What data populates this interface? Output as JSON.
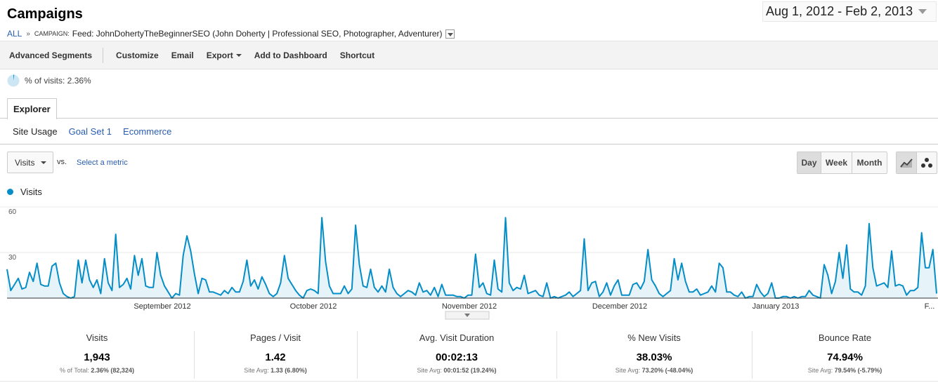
{
  "header": {
    "title": "Campaigns",
    "date_range": "Aug 1, 2012 - Feb 2, 2013"
  },
  "breadcrumb": {
    "all": "ALL",
    "sep": "»",
    "campaign_label": "CAMPAIGN:",
    "campaign_value": "Feed: JohnDohertyTheBeginnerSEO (John Doherty | Professional SEO, Photographer, Adventurer)"
  },
  "toolbar": {
    "advanced_segments": "Advanced Segments",
    "customize": "Customize",
    "email": "Email",
    "export": "Export",
    "add_to_dashboard": "Add to Dashboard",
    "shortcut": "Shortcut"
  },
  "segment": {
    "label": "% of visits: 2.36%",
    "fraction": 0.0236
  },
  "tabs": {
    "explorer": "Explorer",
    "subtabs": [
      "Site Usage",
      "Goal Set 1",
      "Ecommerce"
    ]
  },
  "controls": {
    "metric": "Visits",
    "vs": "vs.",
    "select_metric": "Select a metric",
    "periods": [
      "Day",
      "Week",
      "Month"
    ],
    "active_period": "Day"
  },
  "colors": {
    "line": "#058dc7",
    "fill": "#e6f3f9",
    "link": "#2a5db0"
  },
  "chart_data": {
    "type": "area",
    "series": [
      {
        "name": "Visits",
        "values": [
          19,
          5,
          9,
          13,
          6,
          7,
          17,
          11,
          23,
          9,
          8,
          8,
          21,
          23,
          10,
          3,
          1,
          0,
          1,
          25,
          10,
          25,
          12,
          7,
          12,
          3,
          26,
          10,
          5,
          42,
          7,
          9,
          13,
          6,
          28,
          15,
          26,
          8,
          7,
          7,
          30,
          15,
          8,
          4,
          0,
          3,
          2,
          28,
          41,
          31,
          16,
          3,
          13,
          12,
          4,
          4,
          3,
          2,
          5,
          3,
          7,
          4,
          4,
          11,
          25,
          8,
          12,
          6,
          14,
          9,
          3,
          1,
          3,
          10,
          28,
          13,
          9,
          5,
          2,
          0,
          5,
          6,
          5,
          3,
          53,
          24,
          8,
          3,
          3,
          3,
          8,
          3,
          6,
          48,
          22,
          8,
          7,
          19,
          7,
          4,
          8,
          4,
          19,
          7,
          3,
          1,
          3,
          5,
          4,
          2,
          10,
          4,
          5,
          2,
          7,
          1,
          9,
          2,
          2,
          2,
          1,
          1,
          0,
          2,
          2,
          29,
          7,
          10,
          3,
          2,
          25,
          6,
          4,
          53,
          10,
          5,
          7,
          6,
          15,
          3,
          4,
          5,
          2,
          1,
          10,
          0,
          1,
          0,
          1,
          2,
          4,
          1,
          3,
          5,
          39,
          5,
          10,
          11,
          1,
          4,
          10,
          2,
          8,
          12,
          2,
          2,
          2,
          9,
          10,
          6,
          11,
          32,
          12,
          8,
          3,
          1,
          3,
          5,
          26,
          12,
          23,
          11,
          4,
          4,
          6,
          2,
          3,
          4,
          8,
          4,
          23,
          20,
          4,
          4,
          2,
          1,
          4,
          0,
          1,
          1,
          9,
          4,
          1,
          3,
          10,
          0,
          0,
          1,
          1,
          0,
          1,
          0,
          1,
          1,
          5,
          2,
          1,
          0,
          22,
          15,
          3,
          11,
          30,
          13,
          35,
          6,
          4,
          4,
          2,
          8,
          49,
          20,
          8,
          9,
          10,
          7,
          31,
          8,
          9,
          8,
          2,
          5,
          5,
          7,
          43,
          20,
          20,
          32,
          3
        ]
      }
    ],
    "x_labels": [
      "September 2012",
      "October 2012",
      "November 2012",
      "December 2012",
      "January 2013",
      "F..."
    ],
    "y_ticks": [
      60,
      30
    ],
    "ylim": [
      0,
      60
    ],
    "grid": true
  },
  "scorecards": [
    {
      "label": "Visits",
      "value": "1,943",
      "sub_prefix": "% of Total:",
      "sub_value": "2.36% (82,324)"
    },
    {
      "label": "Pages / Visit",
      "value": "1.42",
      "sub_prefix": "Site Avg:",
      "sub_value": "1.33 (6.80%)"
    },
    {
      "label": "Avg. Visit Duration",
      "value": "00:02:13",
      "sub_prefix": "Site Avg:",
      "sub_value": "00:01:52 (19.24%)"
    },
    {
      "label": "% New Visits",
      "value": "38.03%",
      "sub_prefix": "Site Avg:",
      "sub_value": "73.20% (-48.04%)"
    },
    {
      "label": "Bounce Rate",
      "value": "74.94%",
      "sub_prefix": "Site Avg:",
      "sub_value": "79.54% (-5.79%)"
    }
  ]
}
